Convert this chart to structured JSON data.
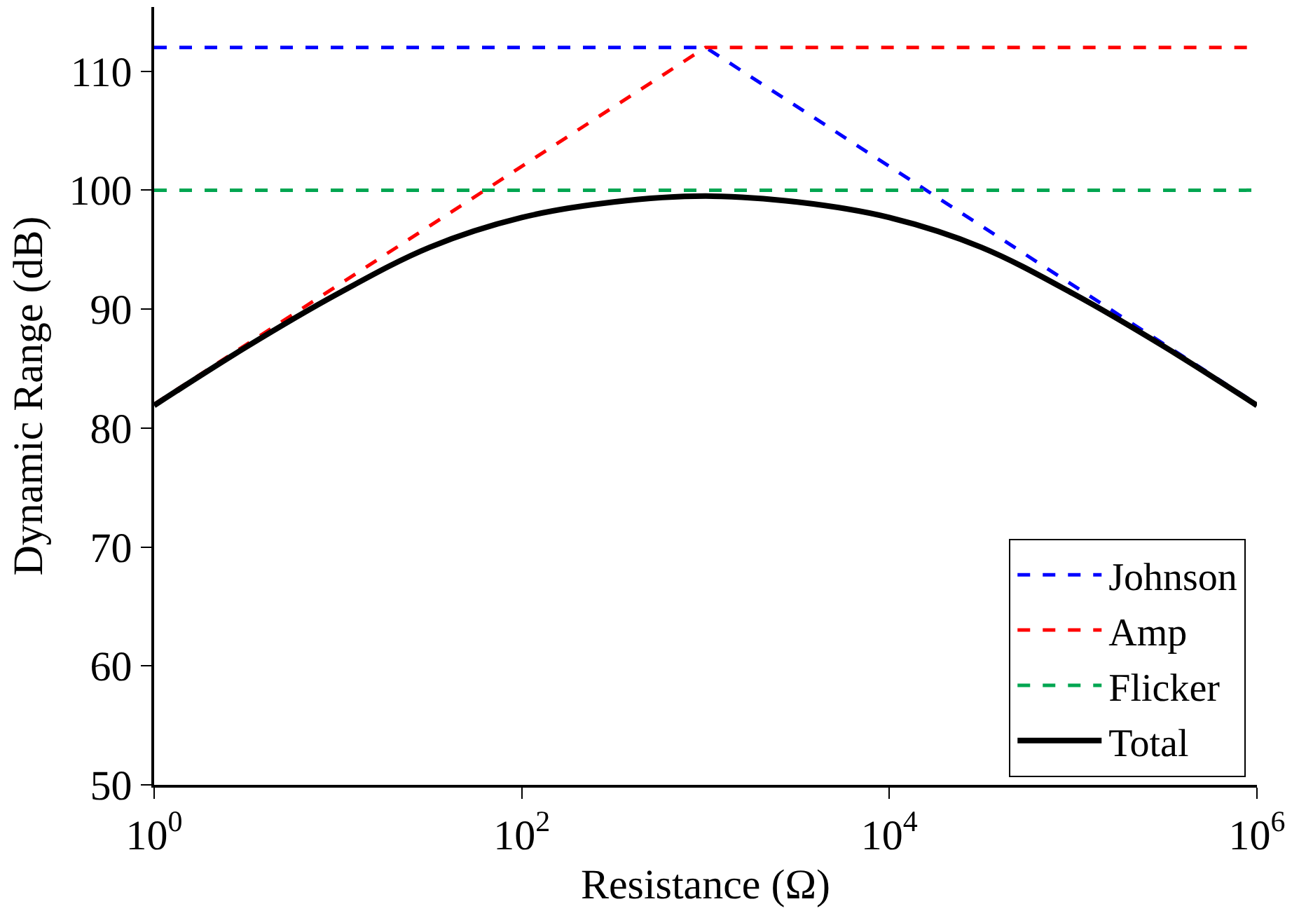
{
  "chart_data": {
    "type": "line",
    "xlabel": "Resistance (Ω)",
    "ylabel": "Dynamic Range (dB)",
    "log": "x",
    "xlim": [
      1,
      1000000
    ],
    "ylim": [
      50,
      115.4
    ],
    "xticks": [
      {
        "value": 1,
        "label": "10$^{0}$"
      },
      {
        "value": 100,
        "label": "10$^{2}$"
      },
      {
        "value": 10000,
        "label": "10$^{4}$"
      },
      {
        "value": 1000000,
        "label": "10$^{6}$"
      }
    ],
    "yticks": [
      50,
      60,
      70,
      80,
      90,
      100,
      110
    ],
    "legend": "bottom right",
    "marker": "none",
    "series": [
      {
        "name": "Johnson",
        "color": "#0000ff",
        "line_style": "dashed",
        "x": [
          1,
          1000,
          1000000
        ],
        "values": [
          112,
          112,
          82
        ]
      },
      {
        "name": "Amp",
        "color": "#ff0000",
        "line_style": "dashed",
        "x": [
          1,
          1000,
          1000000
        ],
        "values": [
          82,
          112,
          112
        ]
      },
      {
        "name": "Flicker",
        "color": "#00a651",
        "line_style": "dashed",
        "x": [
          1,
          1000000
        ],
        "values": [
          100,
          100
        ]
      },
      {
        "name": "Total",
        "color": "#000000",
        "line_style": "solid",
        "x": [
          1,
          3.16,
          10,
          31.6,
          100,
          316,
          1000,
          3162,
          10000,
          31623,
          100000,
          316228,
          1000000
        ],
        "values": [
          81.9,
          86.8,
          91.3,
          95.2,
          97.7,
          99.0,
          99.5,
          99.0,
          97.7,
          95.2,
          91.3,
          86.8,
          81.9
        ]
      }
    ]
  }
}
